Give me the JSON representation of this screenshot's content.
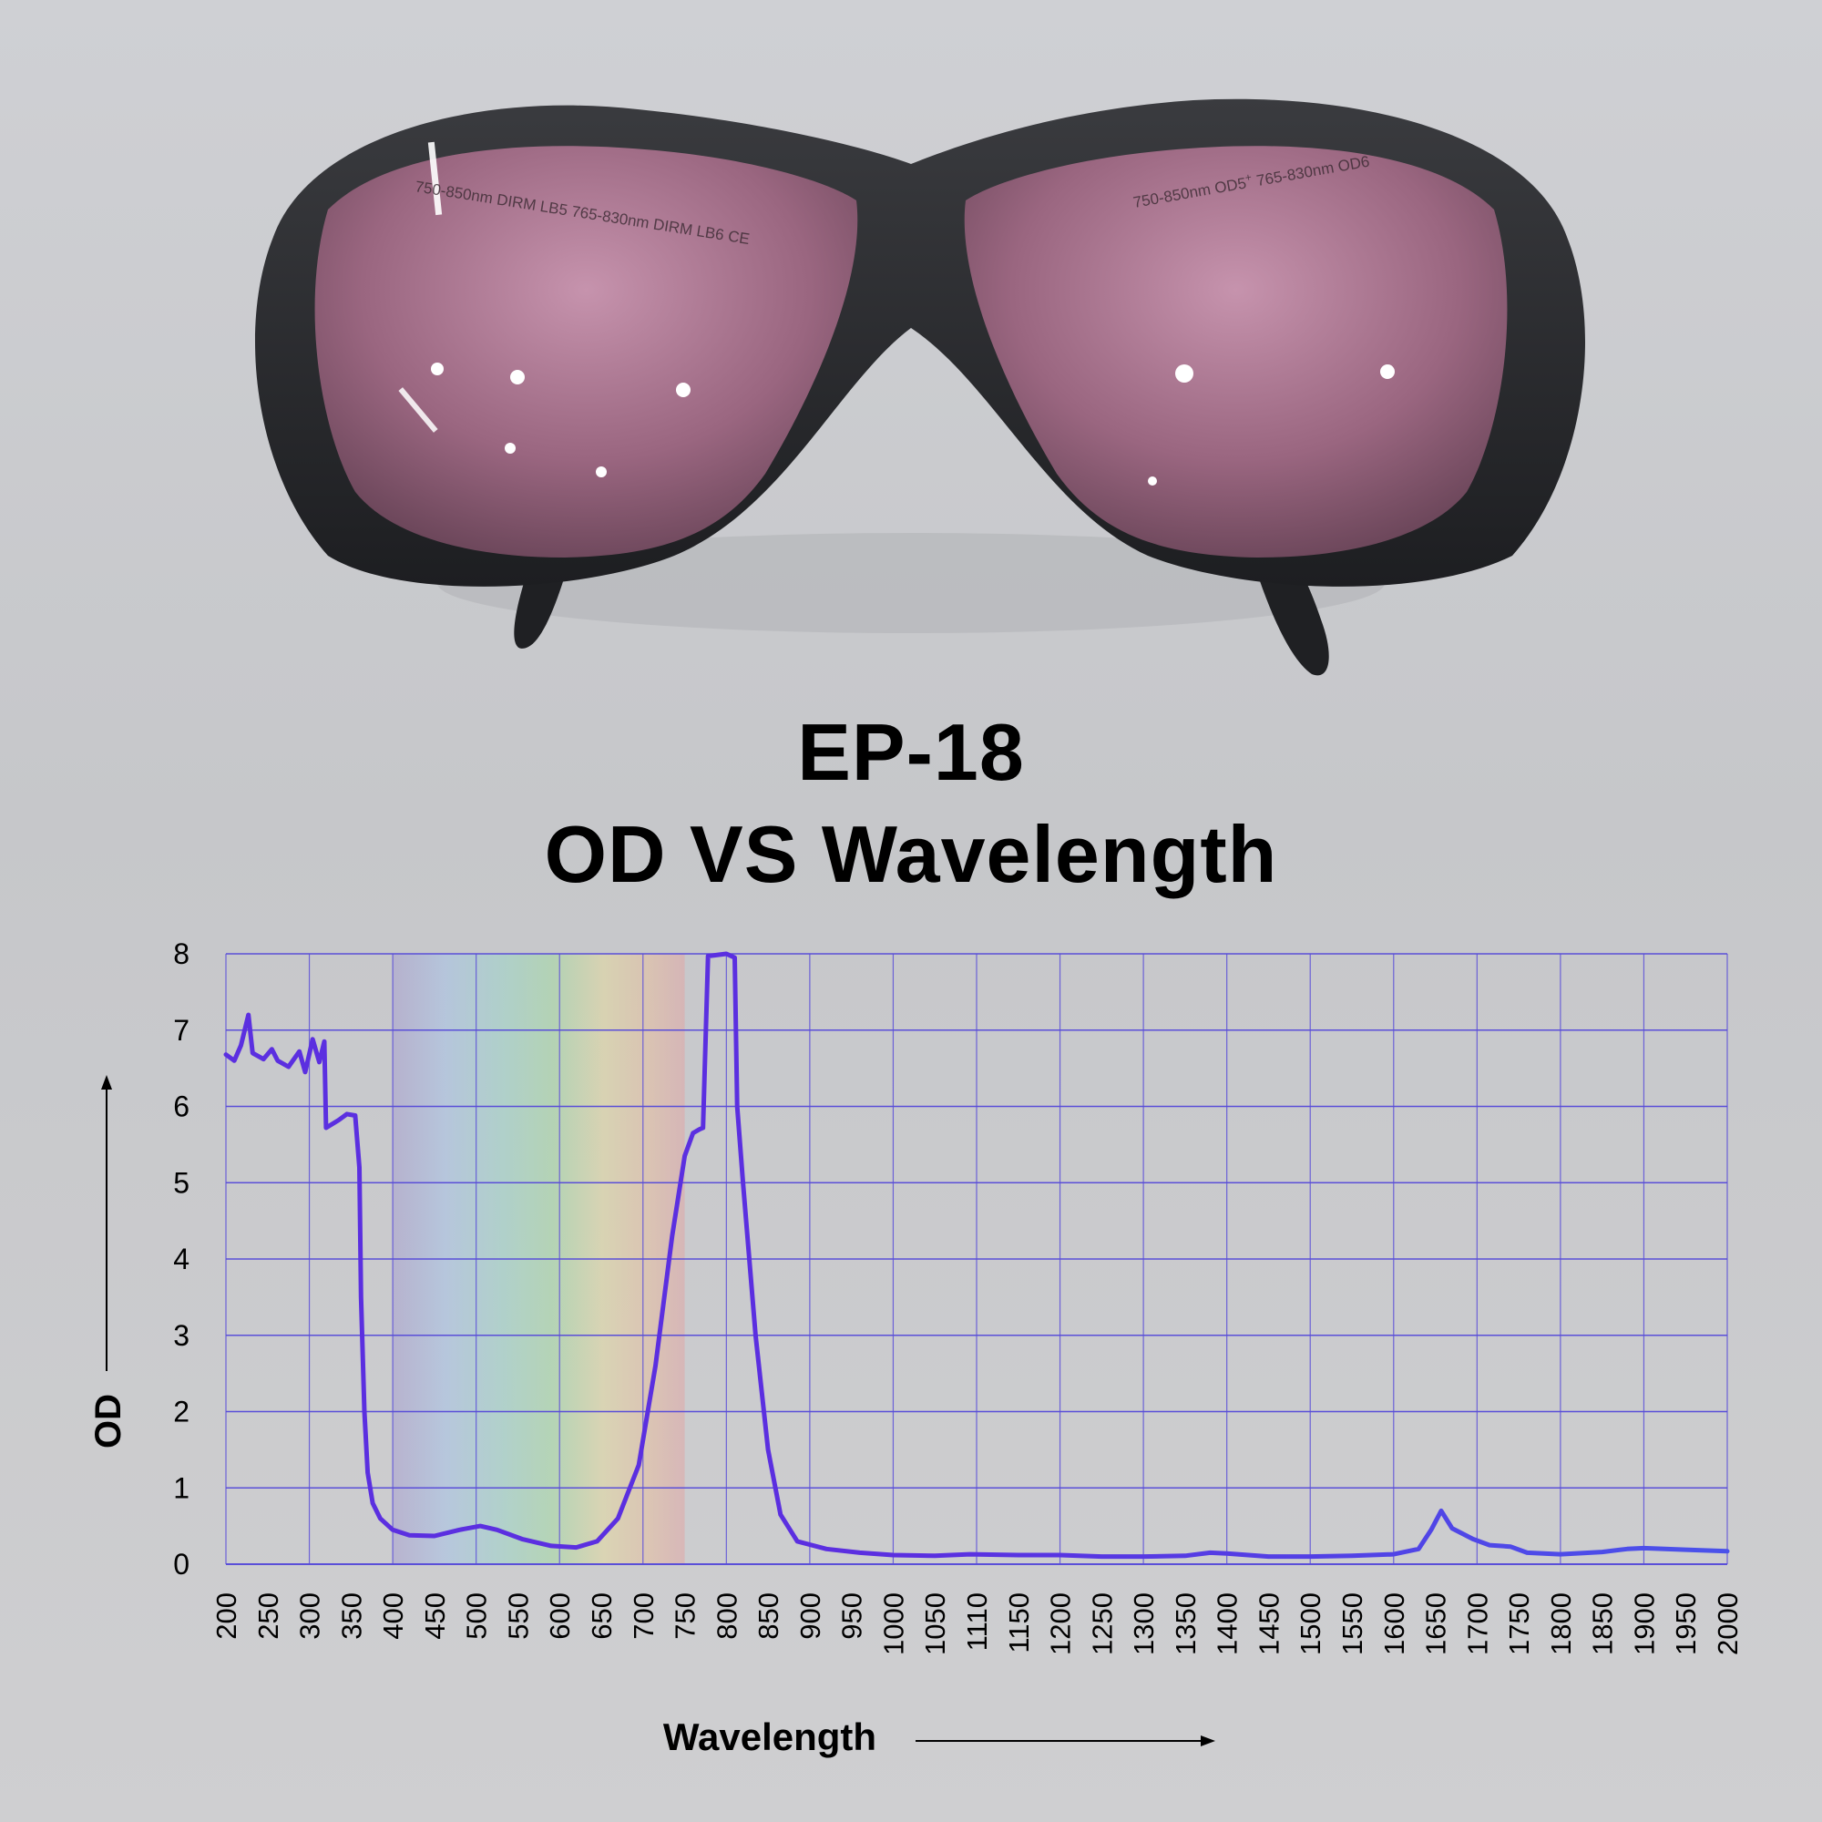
{
  "header": {
    "model": "EP-18",
    "subtitle": "OD VS Wavelength"
  },
  "lens_markings": {
    "left": "750-850nm DIRM LB5  765-830nm DIRM LB6  CE",
    "right_base": "750-850nm OD5",
    "right_sup": "+",
    "right_tail": " 765-830nm OD6"
  },
  "colors": {
    "curve": "#5b2fe0",
    "curve_ir": "#4a52ea",
    "grid": "#5a4fd8",
    "lens": "#b77f9a",
    "frame": "#2a2b2e"
  },
  "chart_data": {
    "type": "line",
    "xlabel": "Wavelength",
    "ylabel": "OD",
    "xlim": [
      200,
      2000
    ],
    "ylim": [
      0,
      8
    ],
    "x_ticks": [
      "200",
      "250",
      "300",
      "350",
      "400",
      "450",
      "500",
      "550",
      "600",
      "650",
      "700",
      "750",
      "800",
      "850",
      "900",
      "950",
      "1000",
      "1050",
      "1110",
      "1150",
      "1200",
      "1250",
      "1300",
      "1350",
      "1400",
      "1450",
      "1500",
      "1550",
      "1600",
      "1650",
      "1700",
      "1750",
      "1800",
      "1850",
      "1900",
      "1950",
      "2000"
    ],
    "y_ticks": [
      "0",
      "1",
      "2",
      "3",
      "4",
      "5",
      "6",
      "7",
      "8"
    ],
    "grid": "on",
    "visible_band": [
      400,
      750
    ],
    "series": [
      {
        "values": [
          [
            200,
            6.68
          ],
          [
            210,
            6.6
          ],
          [
            218,
            6.8
          ],
          [
            227,
            7.2
          ],
          [
            232,
            6.7
          ],
          [
            245,
            6.62
          ],
          [
            255,
            6.75
          ],
          [
            262,
            6.6
          ],
          [
            275,
            6.52
          ],
          [
            288,
            6.72
          ],
          [
            295,
            6.45
          ],
          [
            304,
            6.88
          ],
          [
            312,
            6.58
          ],
          [
            318,
            6.85
          ],
          [
            320,
            5.72
          ],
          [
            335,
            5.82
          ],
          [
            345,
            5.9
          ],
          [
            355,
            5.88
          ],
          [
            360,
            5.2
          ],
          [
            362,
            3.5
          ],
          [
            366,
            2.0
          ],
          [
            370,
            1.2
          ],
          [
            376,
            0.8
          ],
          [
            385,
            0.6
          ],
          [
            400,
            0.45
          ],
          [
            420,
            0.38
          ],
          [
            450,
            0.37
          ],
          [
            480,
            0.45
          ],
          [
            505,
            0.5
          ],
          [
            525,
            0.45
          ],
          [
            555,
            0.33
          ],
          [
            590,
            0.24
          ],
          [
            620,
            0.22
          ],
          [
            645,
            0.3
          ],
          [
            670,
            0.6
          ],
          [
            695,
            1.3
          ],
          [
            715,
            2.6
          ],
          [
            735,
            4.3
          ],
          [
            750,
            5.35
          ],
          [
            760,
            5.65
          ],
          [
            768,
            5.7
          ],
          [
            772,
            5.72
          ],
          [
            778,
            7.97
          ],
          [
            800,
            8.0
          ],
          [
            810,
            7.95
          ],
          [
            813,
            6.0
          ],
          [
            820,
            5.0
          ],
          [
            835,
            3.0
          ],
          [
            850,
            1.5
          ],
          [
            865,
            0.65
          ],
          [
            885,
            0.3
          ],
          [
            920,
            0.2
          ],
          [
            960,
            0.15
          ],
          [
            1000,
            0.12
          ],
          [
            1050,
            0.11
          ],
          [
            1100,
            0.13
          ],
          [
            1150,
            0.12
          ],
          [
            1200,
            0.12
          ],
          [
            1250,
            0.1
          ],
          [
            1300,
            0.1
          ],
          [
            1350,
            0.11
          ],
          [
            1380,
            0.15
          ],
          [
            1400,
            0.14
          ],
          [
            1450,
            0.1
          ],
          [
            1500,
            0.1
          ],
          [
            1550,
            0.11
          ],
          [
            1600,
            0.13
          ],
          [
            1630,
            0.2
          ],
          [
            1645,
            0.45
          ],
          [
            1657,
            0.7
          ],
          [
            1670,
            0.47
          ],
          [
            1695,
            0.33
          ],
          [
            1715,
            0.25
          ],
          [
            1740,
            0.23
          ],
          [
            1760,
            0.15
          ],
          [
            1800,
            0.13
          ],
          [
            1850,
            0.16
          ],
          [
            1880,
            0.2
          ],
          [
            1900,
            0.21
          ],
          [
            1950,
            0.19
          ],
          [
            2000,
            0.17
          ]
        ]
      }
    ]
  }
}
